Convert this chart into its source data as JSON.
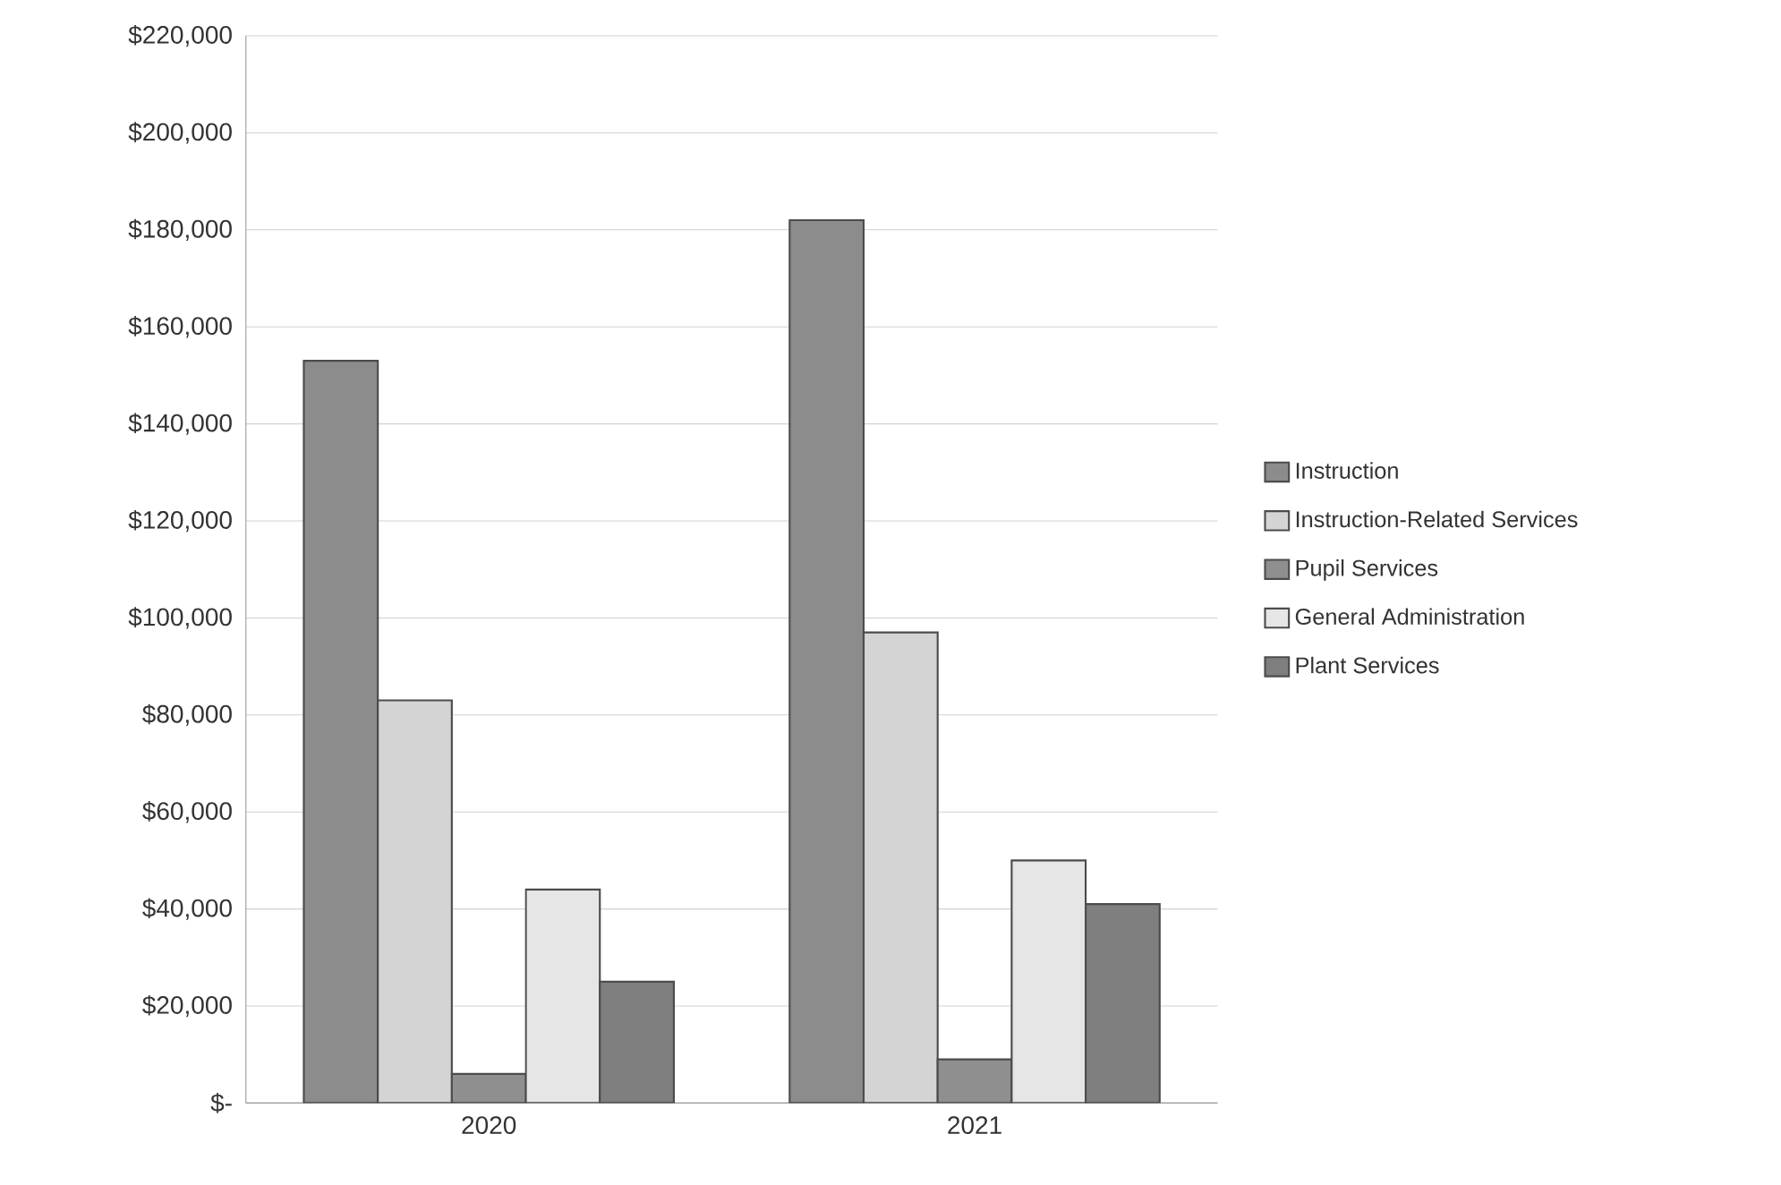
{
  "chart_data": {
    "type": "bar",
    "categories": [
      "2020",
      "2021"
    ],
    "series": [
      {
        "name": "Instruction",
        "color": "#8c8c8c",
        "values": [
          153000,
          182000
        ]
      },
      {
        "name": "Instruction-Related Services",
        "color": "#d4d4d4",
        "values": [
          83000,
          97000
        ]
      },
      {
        "name": "Pupil Services",
        "color": "#8f8f8f",
        "values": [
          6000,
          9000
        ]
      },
      {
        "name": "General Administration",
        "color": "#e6e6e6",
        "values": [
          44000,
          50000
        ]
      },
      {
        "name": "Plant Services",
        "color": "#7f7f7f",
        "values": [
          25000,
          41000
        ]
      }
    ],
    "ylim": [
      0,
      220000
    ],
    "yticks": [
      {
        "value": 0,
        "label": "$-"
      },
      {
        "value": 20000,
        "label": "$20,000"
      },
      {
        "value": 40000,
        "label": "$40,000"
      },
      {
        "value": 60000,
        "label": "$60,000"
      },
      {
        "value": 80000,
        "label": "$80,000"
      },
      {
        "value": 100000,
        "label": "$100,000"
      },
      {
        "value": 120000,
        "label": "$120,000"
      },
      {
        "value": 140000,
        "label": "$140,000"
      },
      {
        "value": 160000,
        "label": "$160,000"
      },
      {
        "value": 180000,
        "label": "$180,000"
      },
      {
        "value": 200000,
        "label": "$200,000"
      },
      {
        "value": 220000,
        "label": "$220,000"
      }
    ],
    "grid": "y",
    "legend": "right"
  }
}
